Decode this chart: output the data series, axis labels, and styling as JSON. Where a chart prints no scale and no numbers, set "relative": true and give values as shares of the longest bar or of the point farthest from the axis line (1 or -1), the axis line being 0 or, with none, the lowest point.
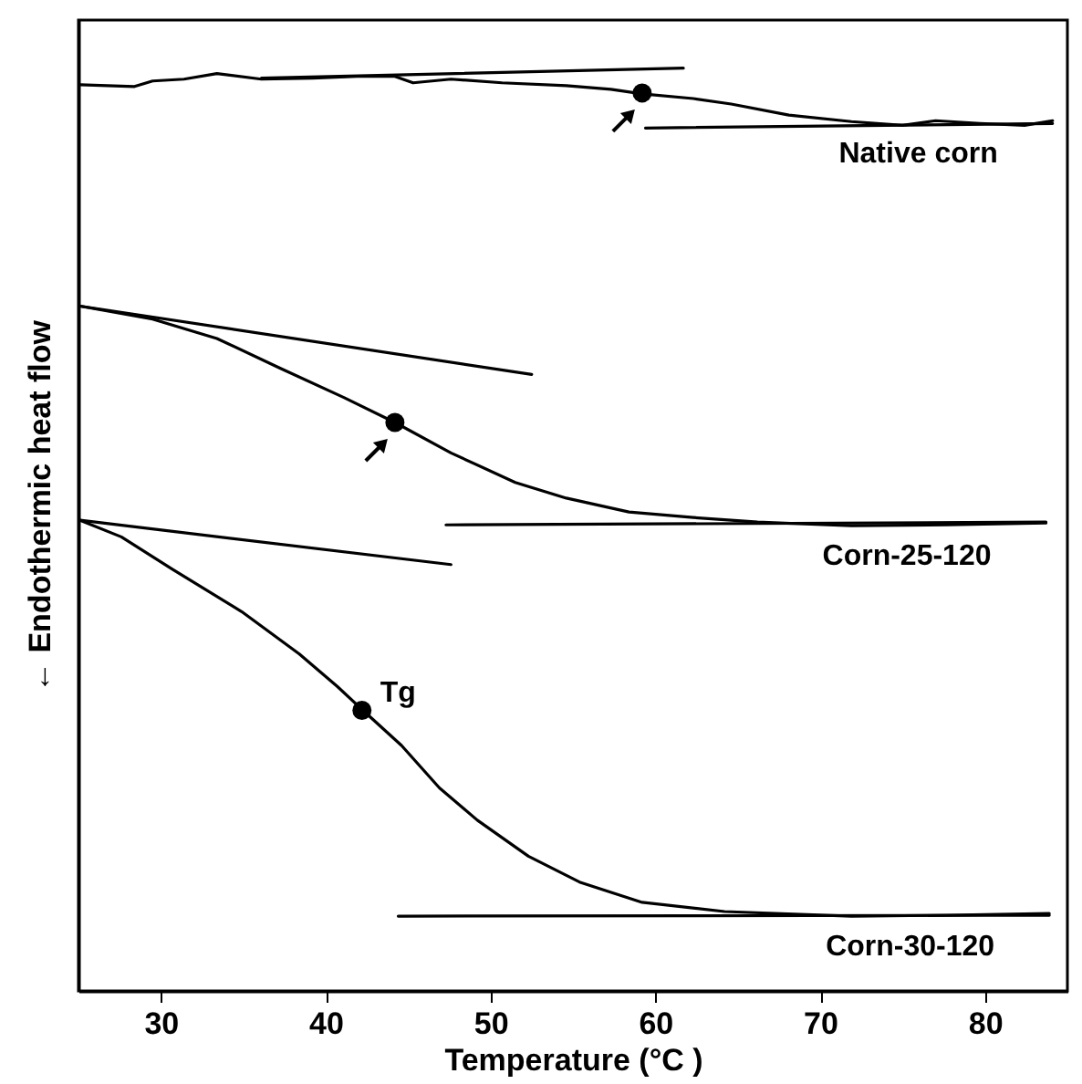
{
  "chart_data": {
    "type": "line",
    "relative": true,
    "xlabel": "Temperature (°C )",
    "ylabel": "← Endothermic heat flow",
    "xlim": [
      25,
      85
    ],
    "xticks": [
      30,
      40,
      50,
      60,
      70,
      80
    ],
    "grid": false,
    "line_style": "solid",
    "annotations": [
      {
        "text": "Tg",
        "x": 42.2,
        "y": 0.304
      }
    ],
    "series": [
      {
        "name": "Native corn",
        "color": "#000000",
        "x": [
          25.1,
          28.4,
          29.5,
          31.4,
          33.4,
          36.1,
          39.2,
          41.9,
          44.2,
          45.3,
          47.6,
          50.7,
          54.6,
          57.3,
          59.2,
          62.3,
          64.6,
          68.1,
          71.9,
          75.0,
          77.0,
          79.7,
          82.4,
          84.1
        ],
        "values": [
          0.982,
          0.98,
          0.986,
          0.988,
          0.994,
          0.988,
          0.989,
          0.991,
          0.991,
          0.984,
          0.988,
          0.984,
          0.981,
          0.977,
          0.972,
          0.967,
          0.961,
          0.949,
          0.942,
          0.938,
          0.943,
          0.94,
          0.938,
          0.943
        ]
      },
      {
        "color": "#000000",
        "x": [
          36.1,
          61.7
        ],
        "values": [
          0.989,
          1.0
        ]
      },
      {
        "color": "#000000",
        "x": [
          59.4,
          84.1
        ],
        "values": [
          0.935,
          0.94
        ]
      },
      {
        "name": "Corn-25-120",
        "color": "#000000",
        "x": [
          25.1,
          29.5,
          33.4,
          37.2,
          41.1,
          44.2,
          47.6,
          51.5,
          54.6,
          58.4,
          62.3,
          66.2,
          71.9,
          77.7,
          83.7
        ],
        "values": [
          0.742,
          0.728,
          0.707,
          0.675,
          0.643,
          0.616,
          0.583,
          0.551,
          0.534,
          0.519,
          0.513,
          0.508,
          0.504,
          0.505,
          0.507
        ]
      },
      {
        "color": "#000000",
        "x": [
          25.1,
          52.5
        ],
        "values": [
          0.742,
          0.668
        ]
      },
      {
        "color": "#000000",
        "x": [
          47.3,
          83.7
        ],
        "values": [
          0.505,
          0.508
        ]
      },
      {
        "name": "Corn-30-120",
        "color": "#000000",
        "x": [
          25.1,
          27.6,
          30.7,
          34.9,
          38.4,
          40.7,
          42.2,
          44.6,
          46.9,
          49.2,
          52.3,
          55.4,
          59.2,
          64.2,
          71.9,
          77.7,
          83.9
        ],
        "values": [
          0.51,
          0.492,
          0.457,
          0.411,
          0.365,
          0.33,
          0.305,
          0.266,
          0.22,
          0.185,
          0.146,
          0.118,
          0.096,
          0.086,
          0.081,
          0.082,
          0.084
        ]
      },
      {
        "color": "#000000",
        "x": [
          25.1,
          47.6
        ],
        "values": [
          0.51,
          0.462
        ]
      },
      {
        "color": "#000000",
        "x": [
          44.4,
          83.9
        ],
        "values": [
          0.081,
          0.082
        ]
      },
      {
        "type": "scatter",
        "marker": "circle",
        "color": "#000000",
        "x": [
          59.2,
          44.2,
          42.2
        ],
        "values": [
          0.973,
          0.616,
          0.304
        ]
      }
    ]
  }
}
